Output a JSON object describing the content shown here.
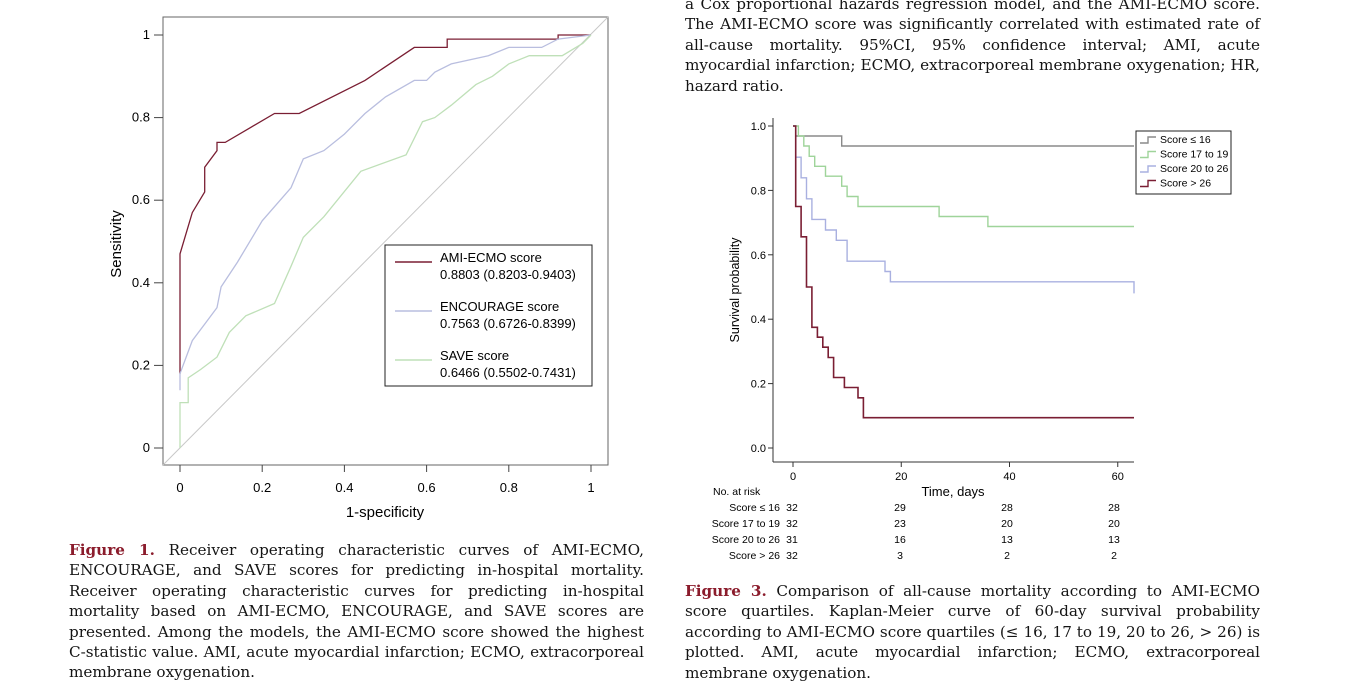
{
  "top_caption_text": "a Cox proportional hazards regression model, and the AMI-ECMO score. The AMI-ECMO score was significantly correlated with estimated rate of all-cause mortality. 95%CI, 95% confidence interval; AMI, acute myocardial infarction; ECMO, extracorporeal membrane oxygenation; HR, hazard ratio.",
  "figure1": {
    "caption_label": "Figure 1.",
    "caption_text": " Receiver operating characteristic curves of AMI-ECMO, ENCOURAGE, and SAVE scores for predicting in-hospital mortality. Receiver operating characteristic curves for predicting in-hospital mortality based on AMI-ECMO, ENCOURAGE, and SAVE scores are presented. Among the models, the AMI-ECMO score showed the highest C-statistic value. AMI, acute myocardial infarction; ECMO, extracorporeal membrane oxygenation."
  },
  "figure3": {
    "caption_label": "Figure 3.",
    "caption_text": " Comparison of all-cause mortality according to AMI-ECMO score quartiles. Kaplan-Meier curve of 60-day survival probability according to AMI-ECMO score quartiles (≤ 16, 17 to 19, 20 to 26, > 26) is plotted. AMI, acute myocardial infarction; ECMO, extracorporeal membrane oxygenation.",
    "risk_table": {
      "header": "No. at risk",
      "times": [
        0,
        20,
        40,
        60
      ],
      "rows": [
        {
          "label": "Score ≤ 16",
          "counts": [
            32,
            29,
            28,
            28
          ]
        },
        {
          "label": "Score 17 to 19",
          "counts": [
            32,
            23,
            20,
            20
          ]
        },
        {
          "label": "Score 20 to 26",
          "counts": [
            31,
            16,
            13,
            13
          ]
        },
        {
          "label": "Score > 26",
          "counts": [
            32,
            3,
            2,
            2
          ]
        }
      ]
    }
  },
  "chart_data": [
    {
      "type": "line",
      "xlabel": "1-specificity",
      "ylabel": "Sensitivity",
      "xlim": [
        0,
        1
      ],
      "ylim": [
        0,
        1
      ],
      "xticks": [
        "0",
        "0.2",
        "0.4",
        "0.6",
        "0.8",
        "1"
      ],
      "yticks": [
        "0",
        "0.2",
        "0.4",
        "0.6",
        "0.8",
        "1"
      ],
      "legend_position": "center-right",
      "reference_line": true,
      "series": [
        {
          "name": "AMI-ECMO score",
          "auc_label": "0.8803 (0.8203-0.9403)",
          "color": "#7a1e33",
          "points": [
            [
              0,
              0.18
            ],
            [
              0,
              0.47
            ],
            [
              0.03,
              0.57
            ],
            [
              0.06,
              0.62
            ],
            [
              0.06,
              0.68
            ],
            [
              0.09,
              0.72
            ],
            [
              0.09,
              0.74
            ],
            [
              0.11,
              0.74
            ],
            [
              0.23,
              0.81
            ],
            [
              0.29,
              0.81
            ],
            [
              0.45,
              0.89
            ],
            [
              0.57,
              0.97
            ],
            [
              0.65,
              0.97
            ],
            [
              0.65,
              0.99
            ],
            [
              0.92,
              0.99
            ],
            [
              0.92,
              1
            ],
            [
              1,
              1
            ]
          ]
        },
        {
          "name": "ENCOURAGE score",
          "auc_label": "0.7563 (0.6726-0.8399)",
          "color": "#b9bedf",
          "points": [
            [
              0,
              0.14
            ],
            [
              0,
              0.18
            ],
            [
              0.03,
              0.26
            ],
            [
              0.06,
              0.3
            ],
            [
              0.09,
              0.34
            ],
            [
              0.1,
              0.39
            ],
            [
              0.14,
              0.45
            ],
            [
              0.2,
              0.55
            ],
            [
              0.27,
              0.63
            ],
            [
              0.3,
              0.7
            ],
            [
              0.35,
              0.72
            ],
            [
              0.4,
              0.76
            ],
            [
              0.45,
              0.81
            ],
            [
              0.5,
              0.85
            ],
            [
              0.57,
              0.89
            ],
            [
              0.6,
              0.89
            ],
            [
              0.62,
              0.91
            ],
            [
              0.66,
              0.93
            ],
            [
              0.75,
              0.95
            ],
            [
              0.8,
              0.97
            ],
            [
              0.88,
              0.97
            ],
            [
              0.92,
              0.99
            ],
            [
              1,
              1
            ]
          ]
        },
        {
          "name": "SAVE score",
          "auc_label": "0.6466 (0.5502-0.7431)",
          "color": "#bfe0b8",
          "points": [
            [
              0,
              0
            ],
            [
              0,
              0.11
            ],
            [
              0.02,
              0.11
            ],
            [
              0.02,
              0.17
            ],
            [
              0.05,
              0.19
            ],
            [
              0.09,
              0.22
            ],
            [
              0.12,
              0.28
            ],
            [
              0.16,
              0.32
            ],
            [
              0.23,
              0.35
            ],
            [
              0.27,
              0.44
            ],
            [
              0.3,
              0.51
            ],
            [
              0.35,
              0.56
            ],
            [
              0.44,
              0.67
            ],
            [
              0.55,
              0.71
            ],
            [
              0.59,
              0.79
            ],
            [
              0.62,
              0.8
            ],
            [
              0.66,
              0.83
            ],
            [
              0.72,
              0.88
            ],
            [
              0.76,
              0.9
            ],
            [
              0.8,
              0.93
            ],
            [
              0.85,
              0.95
            ],
            [
              0.93,
              0.95
            ],
            [
              0.98,
              0.98
            ],
            [
              1,
              1
            ]
          ]
        }
      ]
    },
    {
      "type": "line",
      "xlabel": "Time, days",
      "ylabel": "Survival probability",
      "xlim": [
        0,
        63
      ],
      "ylim": [
        0,
        1
      ],
      "xticks": [
        0,
        20,
        40,
        60
      ],
      "yticks": [
        "0.0",
        "0.2",
        "0.4",
        "0.6",
        "0.8",
        "1.0"
      ],
      "legend_position": "top-right",
      "series": [
        {
          "name": "Score ≤ 16",
          "color": "#8a8a8a",
          "points": [
            [
              0,
              1
            ],
            [
              0.5,
              1
            ],
            [
              0.5,
              0.969
            ],
            [
              9,
              0.969
            ],
            [
              9,
              0.938
            ],
            [
              63,
              0.938
            ]
          ]
        },
        {
          "name": "Score 17 to 19",
          "color": "#9fd49a",
          "points": [
            [
              0,
              1
            ],
            [
              1,
              1
            ],
            [
              1,
              0.969
            ],
            [
              2,
              0.969
            ],
            [
              2,
              0.938
            ],
            [
              3,
              0.938
            ],
            [
              3,
              0.906
            ],
            [
              4,
              0.906
            ],
            [
              4,
              0.875
            ],
            [
              6,
              0.875
            ],
            [
              6,
              0.844
            ],
            [
              9,
              0.844
            ],
            [
              9,
              0.813
            ],
            [
              10,
              0.813
            ],
            [
              10,
              0.781
            ],
            [
              12,
              0.781
            ],
            [
              12,
              0.75
            ],
            [
              27,
              0.75
            ],
            [
              27,
              0.719
            ],
            [
              36,
              0.719
            ],
            [
              36,
              0.688
            ],
            [
              63,
              0.688
            ]
          ]
        },
        {
          "name": "Score 20 to 26",
          "color": "#a9b0e0",
          "points": [
            [
              0,
              1
            ],
            [
              0.5,
              1
            ],
            [
              0.5,
              0.903
            ],
            [
              1.5,
              0.903
            ],
            [
              1.5,
              0.839
            ],
            [
              2.5,
              0.839
            ],
            [
              2.5,
              0.774
            ],
            [
              3.5,
              0.774
            ],
            [
              3.5,
              0.71
            ],
            [
              6,
              0.71
            ],
            [
              6,
              0.677
            ],
            [
              8,
              0.677
            ],
            [
              8,
              0.645
            ],
            [
              10,
              0.645
            ],
            [
              10,
              0.58
            ],
            [
              17,
              0.58
            ],
            [
              17,
              0.548
            ],
            [
              18,
              0.548
            ],
            [
              18,
              0.516
            ],
            [
              63,
              0.516
            ],
            [
              63,
              0.48
            ]
          ]
        },
        {
          "name": "Score > 26",
          "color": "#7a1e33",
          "points": [
            [
              0,
              1
            ],
            [
              0.5,
              1
            ],
            [
              0.5,
              0.75
            ],
            [
              1.5,
              0.75
            ],
            [
              1.5,
              0.656
            ],
            [
              2.5,
              0.656
            ],
            [
              2.5,
              0.5
            ],
            [
              3.5,
              0.5
            ],
            [
              3.5,
              0.375
            ],
            [
              4.5,
              0.375
            ],
            [
              4.5,
              0.344
            ],
            [
              5.5,
              0.344
            ],
            [
              5.5,
              0.313
            ],
            [
              6.5,
              0.313
            ],
            [
              6.5,
              0.281
            ],
            [
              7.5,
              0.281
            ],
            [
              7.5,
              0.219
            ],
            [
              9.5,
              0.219
            ],
            [
              9.5,
              0.188
            ],
            [
              12,
              0.188
            ],
            [
              12,
              0.156
            ],
            [
              13,
              0.156
            ],
            [
              13,
              0.094
            ],
            [
              63,
              0.094
            ]
          ]
        }
      ]
    }
  ]
}
